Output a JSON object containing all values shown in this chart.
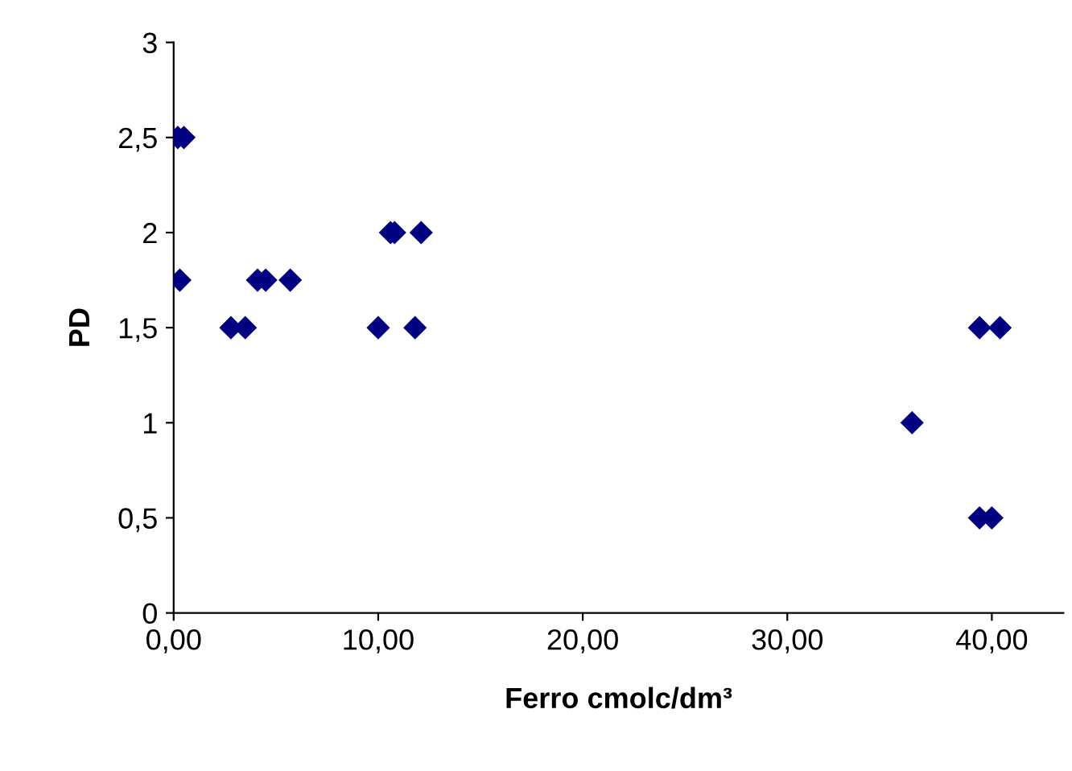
{
  "chart_data": {
    "type": "scatter",
    "xlabel": "Ferro cmolc/dm³",
    "ylabel": "PD",
    "marker": "diamond",
    "grid": false,
    "series": [
      {
        "color": "#000080",
        "x": [
          0.2,
          0.5,
          0.3,
          2.8,
          3.5,
          4.1,
          4.5,
          5.7,
          10.0,
          10.6,
          10.8,
          11.8,
          12.1,
          36.1,
          39.4,
          40.4,
          39.4,
          40.0
        ],
        "values": [
          2.5,
          2.5,
          1.75,
          1.5,
          1.5,
          1.75,
          1.75,
          1.75,
          1.5,
          2.0,
          2.0,
          1.5,
          2.0,
          1.0,
          1.5,
          1.5,
          0.5,
          0.5
        ]
      }
    ],
    "xlim": [
      0,
      43.5
    ],
    "xticks": [
      {
        "value": 0,
        "label": "0,00"
      },
      {
        "value": 10,
        "label": "10,00"
      },
      {
        "value": 20,
        "label": "20,00"
      },
      {
        "value": 30,
        "label": "30,00"
      },
      {
        "value": 40,
        "label": "40,00"
      }
    ],
    "ylim": [
      0,
      3
    ],
    "yticks": [
      0,
      {
        "value": 0.5,
        "label": "0,5"
      },
      1,
      {
        "value": 1.5,
        "label": "1,5"
      },
      2,
      {
        "value": 2.5,
        "label": "2,5"
      },
      3
    ]
  }
}
